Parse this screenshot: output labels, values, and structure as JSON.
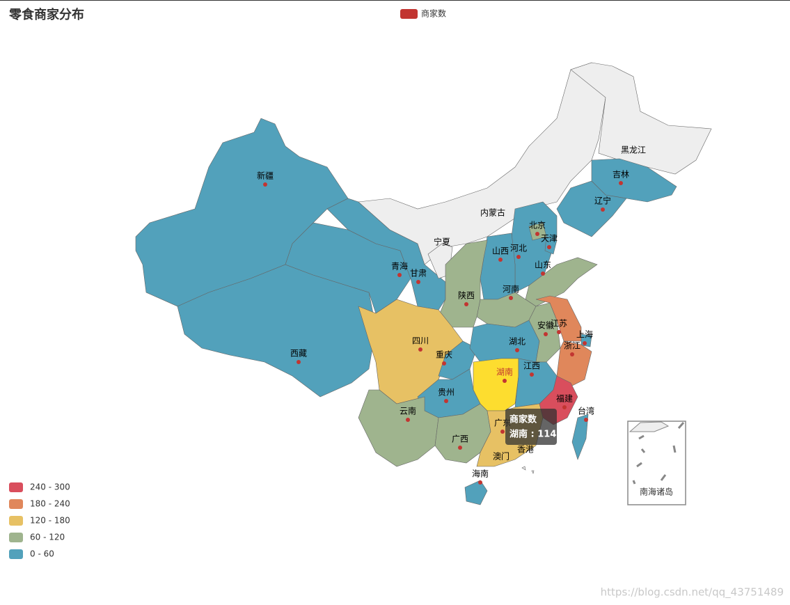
{
  "title": "零食商家分布",
  "legend": {
    "name": "商家数",
    "color": "#c23531"
  },
  "visual_map": [
    {
      "label": "240 - 300",
      "color": "#d94e5d"
    },
    {
      "label": "180 - 240",
      "color": "#e0875b"
    },
    {
      "label": "120 - 180",
      "color": "#e7c164"
    },
    {
      "label": "60 - 120",
      "color": "#9fb48e"
    },
    {
      "label": "0 - 60",
      "color": "#52a1bb"
    }
  ],
  "regions": [
    {
      "name": "新疆",
      "color": "#52a1bb"
    },
    {
      "name": "西藏",
      "color": "#52a1bb"
    },
    {
      "name": "青海",
      "color": "#52a1bb"
    },
    {
      "name": "甘肃",
      "color": "#52a1bb"
    },
    {
      "name": "内蒙古",
      "color": "#eeeeee"
    },
    {
      "name": "黑龙江",
      "color": "#eeeeee"
    },
    {
      "name": "吉林",
      "color": "#52a1bb"
    },
    {
      "name": "辽宁",
      "color": "#52a1bb"
    },
    {
      "name": "宁夏",
      "color": "#eeeeee"
    },
    {
      "name": "河北",
      "color": "#52a1bb"
    },
    {
      "name": "北京",
      "color": "#9fb48e"
    },
    {
      "name": "天津",
      "color": "#52a1bb"
    },
    {
      "name": "山西",
      "color": "#52a1bb"
    },
    {
      "name": "山东",
      "color": "#9fb48e"
    },
    {
      "name": "河南",
      "color": "#9fb48e"
    },
    {
      "name": "陕西",
      "color": "#9fb48e"
    },
    {
      "name": "四川",
      "color": "#e7c164"
    },
    {
      "name": "重庆",
      "color": "#52a1bb"
    },
    {
      "name": "湖北",
      "color": "#52a1bb"
    },
    {
      "name": "安徽",
      "color": "#9fb48e"
    },
    {
      "name": "江苏",
      "color": "#e0875b"
    },
    {
      "name": "上海",
      "color": "#52a1bb"
    },
    {
      "name": "浙江",
      "color": "#e0875b"
    },
    {
      "name": "湖南",
      "color": "#fddd2f"
    },
    {
      "name": "江西",
      "color": "#52a1bb"
    },
    {
      "name": "福建",
      "color": "#d94e5d"
    },
    {
      "name": "贵州",
      "color": "#52a1bb"
    },
    {
      "name": "云南",
      "color": "#9fb48e"
    },
    {
      "name": "广西",
      "color": "#9fb48e"
    },
    {
      "name": "广东",
      "color": "#e7c164"
    },
    {
      "name": "台湾",
      "color": "#52a1bb"
    },
    {
      "name": "海南",
      "color": "#52a1bb"
    },
    {
      "name": "香港",
      "color": "#eeeeee"
    },
    {
      "name": "澳门",
      "color": "#eeeeee"
    }
  ],
  "inset_label": "南海诸岛",
  "tooltip": {
    "title": "商家数",
    "text": "湖南 : 114"
  },
  "watermark": "https://blog.csdn.net/qq_43751489"
}
